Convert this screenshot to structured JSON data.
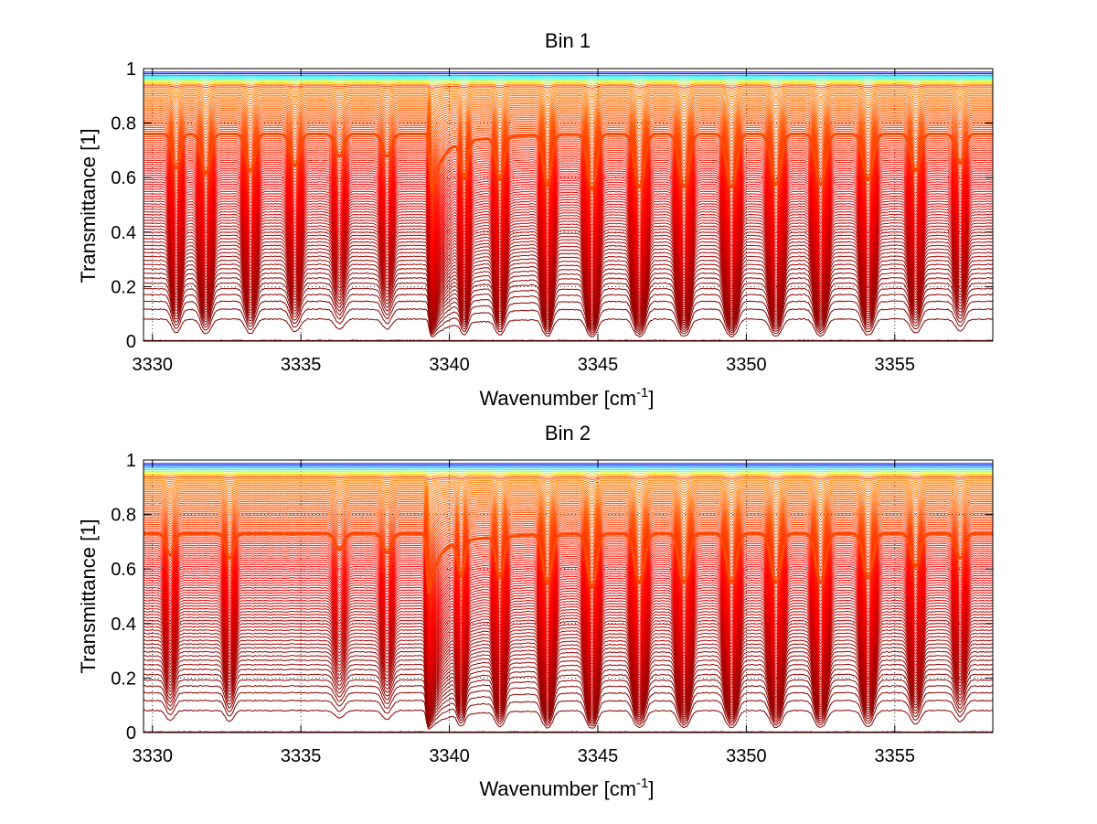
{
  "chart_data": [
    {
      "type": "line",
      "title": "Bin 1",
      "xlabel": "Wavenumber [cm",
      "xlabel_sup": "-1",
      "xlabel_end": "]",
      "ylabel": "Transmittance [1]",
      "xlim": [
        3329.7,
        3358.3
      ],
      "ylim": [
        0,
        1
      ],
      "xticks": [
        3330,
        3335,
        3340,
        3345,
        3350,
        3355
      ],
      "yticks": [
        0,
        0.2,
        0.4,
        0.6,
        0.8,
        1
      ],
      "xtick_labels": [
        "3330",
        "3335",
        "3340",
        "3345",
        "3350",
        "3355"
      ],
      "ytick_labels": [
        "0",
        "0.2",
        "0.4",
        "0.6",
        "0.8",
        "1"
      ],
      "grid": "dotted",
      "legend": "none",
      "series_count": 100,
      "colormap": "jet-reversed (blue top curves, red/dark red bottom curves)",
      "band_edge_wavenumber": 3339.4,
      "thick_reference_curve_level": 0.76,
      "top_curve_level": 0.99,
      "lines": [
        {
          "center": 3330.8,
          "depth": 0.55,
          "width": 0.18
        },
        {
          "center": 3331.8,
          "depth": 0.65,
          "width": 0.2
        },
        {
          "center": 3333.3,
          "depth": 0.6,
          "width": 0.2
        },
        {
          "center": 3334.8,
          "depth": 0.5,
          "width": 0.2
        },
        {
          "center": 3336.3,
          "depth": 0.35,
          "width": 0.2
        },
        {
          "center": 3337.9,
          "depth": 0.35,
          "width": 0.2
        },
        {
          "center": 3340.5,
          "depth": 0.6,
          "width": 0.15
        },
        {
          "center": 3341.7,
          "depth": 0.7,
          "width": 0.18
        },
        {
          "center": 3343.3,
          "depth": 0.85,
          "width": 0.18
        },
        {
          "center": 3344.8,
          "depth": 0.95,
          "width": 0.2
        },
        {
          "center": 3346.4,
          "depth": 0.9,
          "width": 0.22
        },
        {
          "center": 3347.9,
          "depth": 0.9,
          "width": 0.22
        },
        {
          "center": 3349.5,
          "depth": 0.9,
          "width": 0.22
        },
        {
          "center": 3351.0,
          "depth": 0.85,
          "width": 0.22
        },
        {
          "center": 3352.5,
          "depth": 0.85,
          "width": 0.22
        },
        {
          "center": 3354.1,
          "depth": 0.75,
          "width": 0.22
        },
        {
          "center": 3355.7,
          "depth": 0.6,
          "width": 0.2
        },
        {
          "center": 3357.2,
          "depth": 0.45,
          "width": 0.2
        }
      ]
    },
    {
      "type": "line",
      "title": "Bin 2",
      "xlabel": "Wavenumber [cm",
      "xlabel_sup": "-1",
      "xlabel_end": "]",
      "ylabel": "Transmittance [1]",
      "xlim": [
        3329.7,
        3358.3
      ],
      "ylim": [
        0,
        1
      ],
      "xticks": [
        3330,
        3335,
        3340,
        3345,
        3350,
        3355
      ],
      "yticks": [
        0,
        0.2,
        0.4,
        0.6,
        0.8,
        1
      ],
      "xtick_labels": [
        "3330",
        "3335",
        "3340",
        "3345",
        "3350",
        "3355"
      ],
      "ytick_labels": [
        "0",
        "0.2",
        "0.4",
        "0.6",
        "0.8",
        "1"
      ],
      "grid": "dotted",
      "legend": "none",
      "series_count": 100,
      "colormap": "jet-reversed (blue top curves, red/dark red bottom curves)",
      "band_edge_wavenumber": 3339.3,
      "thick_reference_curve_level": 0.73,
      "top_curve_level": 0.99,
      "lines": [
        {
          "center": 3330.6,
          "depth": 0.35,
          "width": 0.18
        },
        {
          "center": 3332.6,
          "depth": 0.4,
          "width": 0.18
        },
        {
          "center": 3336.3,
          "depth": 0.25,
          "width": 0.2
        },
        {
          "center": 3337.9,
          "depth": 0.3,
          "width": 0.2
        },
        {
          "center": 3340.4,
          "depth": 0.6,
          "width": 0.15
        },
        {
          "center": 3341.7,
          "depth": 0.7,
          "width": 0.18
        },
        {
          "center": 3343.3,
          "depth": 0.85,
          "width": 0.2
        },
        {
          "center": 3344.8,
          "depth": 0.95,
          "width": 0.2
        },
        {
          "center": 3346.4,
          "depth": 0.85,
          "width": 0.22
        },
        {
          "center": 3347.9,
          "depth": 0.85,
          "width": 0.22
        },
        {
          "center": 3349.5,
          "depth": 0.85,
          "width": 0.22
        },
        {
          "center": 3351.0,
          "depth": 0.85,
          "width": 0.22
        },
        {
          "center": 3352.5,
          "depth": 0.85,
          "width": 0.22
        },
        {
          "center": 3354.1,
          "depth": 0.75,
          "width": 0.22
        },
        {
          "center": 3355.7,
          "depth": 0.55,
          "width": 0.2
        },
        {
          "center": 3357.2,
          "depth": 0.4,
          "width": 0.2
        }
      ]
    }
  ]
}
